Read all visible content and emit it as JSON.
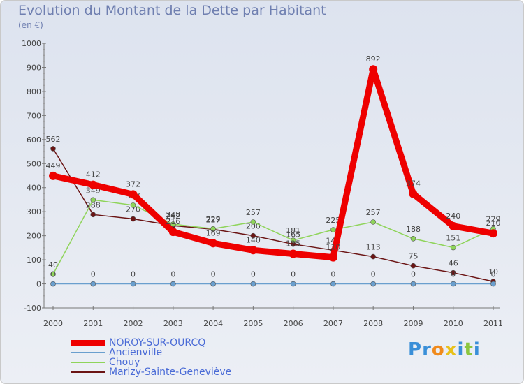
{
  "title": "Evolution du Montant de la Dette par Habitant",
  "subtitle": "(en €)",
  "logo": "Proxiti",
  "chart_data": {
    "type": "line",
    "title": "Evolution du Montant de la Dette par Habitant",
    "ylabel": "(en €)",
    "xlabel": "",
    "ylim": [
      -100,
      1000
    ],
    "yticks": [
      -100,
      0,
      100,
      200,
      300,
      400,
      500,
      600,
      700,
      800,
      900,
      1000
    ],
    "x": [
      "2000",
      "2001",
      "2002",
      "2003",
      "2004",
      "2005",
      "2006",
      "2007",
      "2008",
      "2009",
      "2010",
      "2011"
    ],
    "series": [
      {
        "name": "Marizy-Sainte-Geneviève",
        "color": "#6b1414",
        "values": [
          562,
          288,
          270,
          242,
          227,
          200,
          165,
          140,
          113,
          75,
          46,
          10
        ]
      },
      {
        "name": "Chouy",
        "color": "#8fd45a",
        "values": [
          40,
          349,
          327,
          248,
          229,
          257,
          181,
          225,
          257,
          188,
          151,
          229
        ]
      },
      {
        "name": "Ancienville",
        "color": "#6a9fce",
        "values": [
          0,
          0,
          0,
          0,
          0,
          0,
          0,
          0,
          0,
          0,
          0,
          0
        ]
      },
      {
        "name": "NOROY-SUR-OURCQ",
        "color": "#ee0000",
        "values": [
          449,
          412,
          372,
          216,
          169,
          140,
          125,
          110,
          892,
          374,
          240,
          210
        ]
      }
    ],
    "legend_order": [
      "NOROY-SUR-OURCQ",
      "Ancienville",
      "Chouy",
      "Marizy-Sainte-Geneviève"
    ],
    "grid": false,
    "legend": "bottom-left"
  }
}
